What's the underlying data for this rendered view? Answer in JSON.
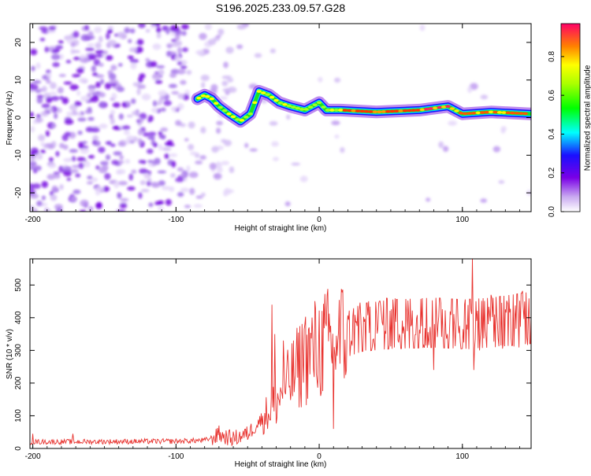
{
  "title": "S196.2025.233.09.57.G28",
  "chart_data": [
    {
      "type": "heatmap",
      "xlabel": "Height of straight line (km)",
      "ylabel": "Frequency (Hz)",
      "xlim": [
        -202,
        148
      ],
      "ylim": [
        -25,
        25
      ],
      "xticks": [
        -200,
        -100,
        0,
        100
      ],
      "yticks": [
        -20,
        -10,
        0,
        10,
        20
      ],
      "colorbar": {
        "label": "Normalized spectral amplitude",
        "range": [
          0,
          0.97
        ],
        "ticks": [
          0.0,
          0.2,
          0.4,
          0.6,
          0.8
        ]
      },
      "ridge_frequency": [
        {
          "x": -85,
          "y": 5
        },
        {
          "x": -80,
          "y": 6
        },
        {
          "x": -75,
          "y": 5
        },
        {
          "x": -70,
          "y": 3
        },
        {
          "x": -63,
          "y": 1
        },
        {
          "x": -55,
          "y": -1
        },
        {
          "x": -48,
          "y": 1
        },
        {
          "x": -42,
          "y": 7
        },
        {
          "x": -35,
          "y": 6
        },
        {
          "x": -28,
          "y": 4
        },
        {
          "x": -20,
          "y": 3
        },
        {
          "x": -10,
          "y": 2
        },
        {
          "x": 0,
          "y": 4
        },
        {
          "x": 5,
          "y": 2
        },
        {
          "x": 15,
          "y": 2
        },
        {
          "x": 40,
          "y": 1.5
        },
        {
          "x": 70,
          "y": 2
        },
        {
          "x": 90,
          "y": 3
        },
        {
          "x": 100,
          "y": 1
        },
        {
          "x": 120,
          "y": 1.5
        },
        {
          "x": 148,
          "y": 1
        }
      ]
    },
    {
      "type": "line",
      "xlabel": "Height of straight line (km)",
      "ylabel": "SNR (10 * v/v)",
      "xlim": [
        -202,
        148
      ],
      "ylim": [
        0,
        580
      ],
      "xticks": [
        -200,
        -100,
        0,
        100
      ],
      "yticks": [
        0,
        100,
        200,
        300,
        400,
        500
      ],
      "color": "#e8322e",
      "trend": [
        {
          "x": -202,
          "y": 20
        },
        {
          "x": -100,
          "y": 22
        },
        {
          "x": -80,
          "y": 25
        },
        {
          "x": -70,
          "y": 40
        },
        {
          "x": -60,
          "y": 30
        },
        {
          "x": -50,
          "y": 45
        },
        {
          "x": -40,
          "y": 90
        },
        {
          "x": -30,
          "y": 140
        },
        {
          "x": -20,
          "y": 210
        },
        {
          "x": -10,
          "y": 280
        },
        {
          "x": 0,
          "y": 310
        },
        {
          "x": 10,
          "y": 330
        },
        {
          "x": 20,
          "y": 350
        },
        {
          "x": 30,
          "y": 370
        },
        {
          "x": 50,
          "y": 380
        },
        {
          "x": 80,
          "y": 385
        },
        {
          "x": 100,
          "y": 380
        },
        {
          "x": 120,
          "y": 385
        },
        {
          "x": 148,
          "y": 400
        }
      ],
      "spikes": [
        {
          "x": -200,
          "y": 45
        },
        {
          "x": -172,
          "y": 45
        },
        {
          "x": -70,
          "y": 70
        },
        {
          "x": -33,
          "y": 440
        },
        {
          "x": -31,
          "y": 350
        },
        {
          "x": -25,
          "y": 330
        },
        {
          "x": -10,
          "y": 380
        },
        {
          "x": 10,
          "y": 60
        },
        {
          "x": 80,
          "y": 240
        },
        {
          "x": 107,
          "y": 580
        },
        {
          "x": 108,
          "y": 240
        },
        {
          "x": 120,
          "y": 470
        }
      ]
    }
  ]
}
